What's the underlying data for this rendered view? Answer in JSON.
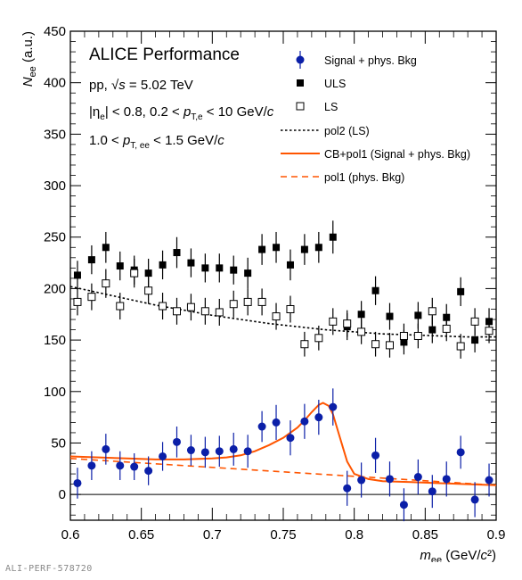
{
  "chart_data": {
    "type": "scatter",
    "title": "ALICE Performance",
    "subtitle_lines": [
      "pp, √s = 5.02 TeV",
      "|η_e| < 0.8, 0.2 < p_T,e < 10 GeV/c",
      "1.0 < p_T, ee < 1.5 GeV/c"
    ],
    "xlabel": "m_ee (GeV/c²)",
    "ylabel": "N_ee (a.u.)",
    "xlim": [
      0.6,
      0.9
    ],
    "ylim": [
      -25,
      450
    ],
    "x_ticks": [
      "0.6",
      "0.65",
      "0.7",
      "0.75",
      "0.8",
      "0.85",
      "0.9"
    ],
    "y_ticks": [
      "0",
      "50",
      "100",
      "150",
      "200",
      "250",
      "300",
      "350",
      "400",
      "450"
    ],
    "legend_position": "top-right",
    "series": [
      {
        "name": "Signal + phys. Bkg",
        "marker": "filled-circle",
        "color": "#0b1fa8",
        "x": [
          0.605,
          0.615,
          0.625,
          0.635,
          0.645,
          0.655,
          0.665,
          0.675,
          0.685,
          0.695,
          0.705,
          0.715,
          0.725,
          0.735,
          0.745,
          0.755,
          0.765,
          0.775,
          0.785,
          0.795,
          0.805,
          0.815,
          0.825,
          0.835,
          0.845,
          0.855,
          0.865,
          0.875,
          0.885,
          0.895
        ],
        "y": [
          11,
          28,
          44,
          28,
          27,
          23,
          37,
          51,
          43,
          41,
          42,
          44,
          42,
          66,
          70,
          55,
          71,
          75,
          85,
          6,
          14,
          38,
          15,
          -10,
          17,
          3,
          15,
          41,
          -5,
          14
        ],
        "err": [
          15,
          14,
          15,
          14,
          13,
          14,
          14,
          15,
          15,
          15,
          15,
          16,
          16,
          15,
          17,
          17,
          17,
          17,
          18,
          17,
          17,
          17,
          17,
          16,
          17,
          16,
          17,
          16,
          17,
          16
        ]
      },
      {
        "name": "ULS",
        "marker": "filled-square",
        "color": "#000000",
        "x": [
          0.605,
          0.615,
          0.625,
          0.635,
          0.645,
          0.655,
          0.665,
          0.675,
          0.685,
          0.695,
          0.705,
          0.715,
          0.725,
          0.735,
          0.745,
          0.755,
          0.765,
          0.775,
          0.785,
          0.795,
          0.805,
          0.815,
          0.825,
          0.835,
          0.845,
          0.855,
          0.865,
          0.875,
          0.885,
          0.895
        ],
        "y": [
          213,
          228,
          240,
          222,
          218,
          215,
          223,
          235,
          225,
          220,
          220,
          218,
          215,
          238,
          240,
          223,
          238,
          240,
          250,
          163,
          175,
          198,
          173,
          148,
          174,
          160,
          172,
          197,
          150,
          168
        ],
        "err": [
          14,
          14,
          15,
          14,
          14,
          14,
          14,
          15,
          14,
          14,
          14,
          14,
          15,
          15,
          15,
          15,
          15,
          15,
          16,
          13,
          13,
          14,
          13,
          12,
          13,
          13,
          13,
          14,
          12,
          13
        ]
      },
      {
        "name": "LS",
        "marker": "open-square",
        "color": "#000000",
        "x": [
          0.605,
          0.615,
          0.625,
          0.635,
          0.645,
          0.655,
          0.665,
          0.675,
          0.685,
          0.695,
          0.705,
          0.715,
          0.725,
          0.735,
          0.745,
          0.755,
          0.765,
          0.775,
          0.785,
          0.795,
          0.805,
          0.815,
          0.825,
          0.835,
          0.845,
          0.855,
          0.865,
          0.875,
          0.885,
          0.895
        ],
        "y": [
          187,
          192,
          205,
          183,
          215,
          198,
          183,
          178,
          182,
          178,
          177,
          185,
          187,
          187,
          173,
          180,
          146,
          152,
          168,
          166,
          158,
          146,
          145,
          154,
          154,
          178,
          161,
          144,
          168,
          159
        ],
        "err": [
          13,
          13,
          14,
          13,
          14,
          13,
          13,
          13,
          13,
          13,
          13,
          13,
          13,
          13,
          13,
          13,
          12,
          12,
          13,
          13,
          12,
          12,
          12,
          12,
          12,
          13,
          12,
          12,
          13,
          12
        ]
      },
      {
        "name": "pol2 (LS)",
        "line": "dotted",
        "color": "#000000",
        "x": [
          0.6,
          0.62,
          0.64,
          0.66,
          0.68,
          0.7,
          0.72,
          0.74,
          0.76,
          0.78,
          0.8,
          0.82,
          0.84,
          0.86,
          0.88,
          0.9
        ],
        "y": [
          202,
          196,
          190,
          184,
          179,
          174,
          170,
          166,
          163,
          160,
          158,
          156,
          155,
          154,
          153,
          153
        ]
      },
      {
        "name": "CB+pol1 (Signal + phys. Bkg)",
        "line": "solid",
        "color": "#ff5500",
        "x": [
          0.6,
          0.62,
          0.64,
          0.66,
          0.68,
          0.7,
          0.71,
          0.72,
          0.73,
          0.74,
          0.75,
          0.76,
          0.765,
          0.77,
          0.775,
          0.778,
          0.782,
          0.785,
          0.79,
          0.795,
          0.8,
          0.81,
          0.82,
          0.84,
          0.86,
          0.88,
          0.9
        ],
        "y": [
          37,
          36,
          35,
          34,
          34,
          35,
          36,
          38,
          42,
          48,
          55,
          65,
          72,
          80,
          87,
          89,
          86,
          78,
          55,
          32,
          20,
          15,
          13,
          12,
          11,
          10,
          9
        ]
      },
      {
        "name": "pol1 (phys. Bkg)",
        "line": "dashed",
        "color": "#ff5500",
        "x": [
          0.6,
          0.9
        ],
        "y": [
          35,
          9
        ]
      }
    ]
  },
  "footer": "ALI-PERF-578720"
}
